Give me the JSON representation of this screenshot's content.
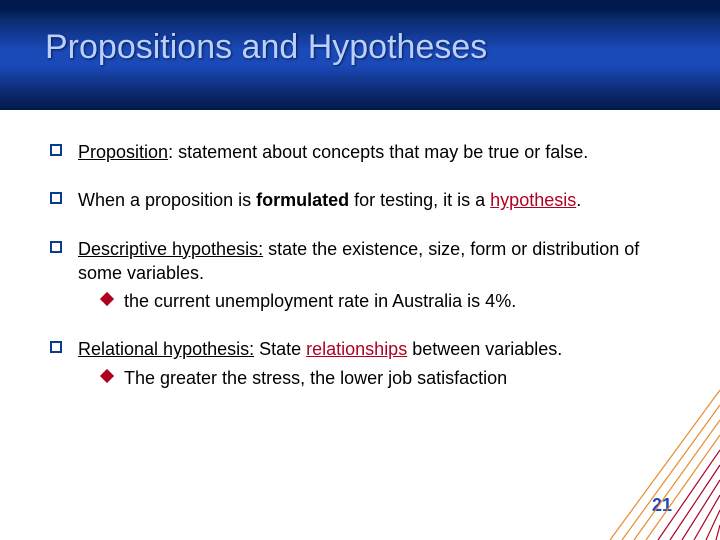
{
  "title": "Propositions and Hypotheses",
  "page_number": "21",
  "colors": {
    "title_text": "#b8cfff",
    "bullet_border": "#0a3c8c",
    "diamond_fill": "#b00020",
    "accent_red": "#b00020",
    "accent_orange": "#e98b2a",
    "page_num": "#1a49b8"
  },
  "items": [
    {
      "html": "<span class=\"u\">Proposition</span>: statement about concepts that may be true or false."
    },
    {
      "html": "When a proposition is <b>formulated</b> for testing, it is a <span class=\"em-red\">hypothesis</span>."
    },
    {
      "html": "<span class=\"u\">Descriptive hypothesis:</span> state the existence, size, form or distribution of some variables.",
      "sub": [
        "the current unemployment rate in Australia is 4%."
      ]
    },
    {
      "html": "<span class=\"u\">Relational hypothesis:</span> State <span class=\"em-red\">relationships</span> between variables.",
      "sub": [
        "The greater the stress, the lower job satisfaction"
      ]
    }
  ]
}
